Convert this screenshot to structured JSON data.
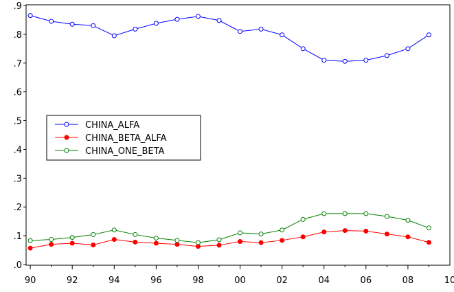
{
  "chart_data": {
    "type": "line",
    "title": "",
    "xlabel": "",
    "ylabel": "",
    "x": [
      1990,
      1991,
      1992,
      1993,
      1994,
      1995,
      1996,
      1997,
      1998,
      1999,
      2000,
      2001,
      2002,
      2003,
      2004,
      2005,
      2006,
      2007,
      2008,
      2009
    ],
    "xlim": [
      1989.8,
      2010
    ],
    "ylim": [
      0.0,
      0.9
    ],
    "x_ticks": [
      1990,
      1992,
      1994,
      1996,
      1998,
      2000,
      2002,
      2004,
      2006,
      2008,
      2010
    ],
    "x_tick_labels": [
      "90",
      "92",
      "94",
      "96",
      "98",
      "00",
      "02",
      "04",
      "06",
      "08",
      "10"
    ],
    "y_ticks": [
      0.0,
      0.1,
      0.2,
      0.3,
      0.4,
      0.5,
      0.6,
      0.7,
      0.8,
      0.9
    ],
    "y_tick_labels": [
      ".0",
      ".1",
      ".2",
      ".3",
      ".4",
      ".5",
      ".6",
      ".7",
      ".8",
      ".9"
    ],
    "grid": false,
    "legend_position": "middle-left",
    "series": [
      {
        "name": "CHINA_ALFA",
        "color": "#0000ff",
        "marker": "open-circle",
        "values": [
          0.865,
          0.845,
          0.835,
          0.83,
          0.795,
          0.818,
          0.838,
          0.852,
          0.862,
          0.848,
          0.81,
          0.818,
          0.798,
          0.75,
          0.71,
          0.706,
          0.71,
          0.726,
          0.75,
          0.798
        ]
      },
      {
        "name": "CHINA_BETA_ALFA",
        "color": "#ff0000",
        "marker": "filled-circle",
        "values": [
          0.057,
          0.07,
          0.074,
          0.068,
          0.087,
          0.078,
          0.074,
          0.07,
          0.063,
          0.067,
          0.08,
          0.076,
          0.084,
          0.096,
          0.113,
          0.118,
          0.116,
          0.106,
          0.096,
          0.077
        ]
      },
      {
        "name": "CHINA_ONE_BETA",
        "color": "#008000",
        "marker": "open-circle",
        "values": [
          0.083,
          0.087,
          0.094,
          0.104,
          0.12,
          0.104,
          0.092,
          0.084,
          0.076,
          0.086,
          0.11,
          0.106,
          0.12,
          0.157,
          0.177,
          0.177,
          0.177,
          0.167,
          0.154,
          0.127
        ]
      }
    ]
  }
}
